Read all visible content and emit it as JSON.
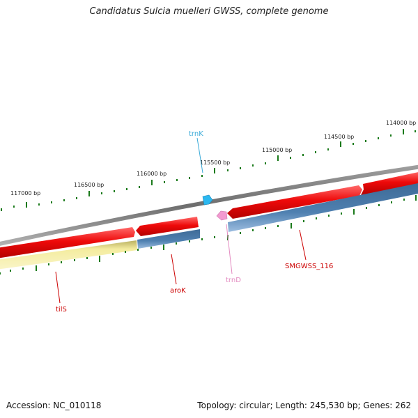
{
  "title": "Candidatus Sulcia muelleri GWSS, complete genome",
  "footer": {
    "accession": "Accession: NC_010118",
    "summary": "Topology: circular; Length: 245,530 bp; Genes: 262"
  },
  "tick_labels": [
    "117000 bp",
    "116500 bp",
    "116000 bp",
    "115500 bp",
    "115000 bp",
    "114500 bp",
    "114000 bp"
  ],
  "gene_labels": {
    "trnK": "trnK",
    "trnD": "trnD",
    "tilS": "tilS",
    "aroK": "aroK",
    "smgwss": "SMGWSS_116"
  },
  "colors": {
    "cds_forward": "#e8000b",
    "cds_reverse": "#4a79a8",
    "trna_k": "#2bb8f0",
    "trna_d": "#f29ad0",
    "tils_band": "#f3ea9e",
    "backbone": "#808080",
    "tick": "#1a7a1a",
    "label_red": "#cc0000",
    "label_cyan": "#3aaad8",
    "label_pink": "#e38ac0"
  }
}
